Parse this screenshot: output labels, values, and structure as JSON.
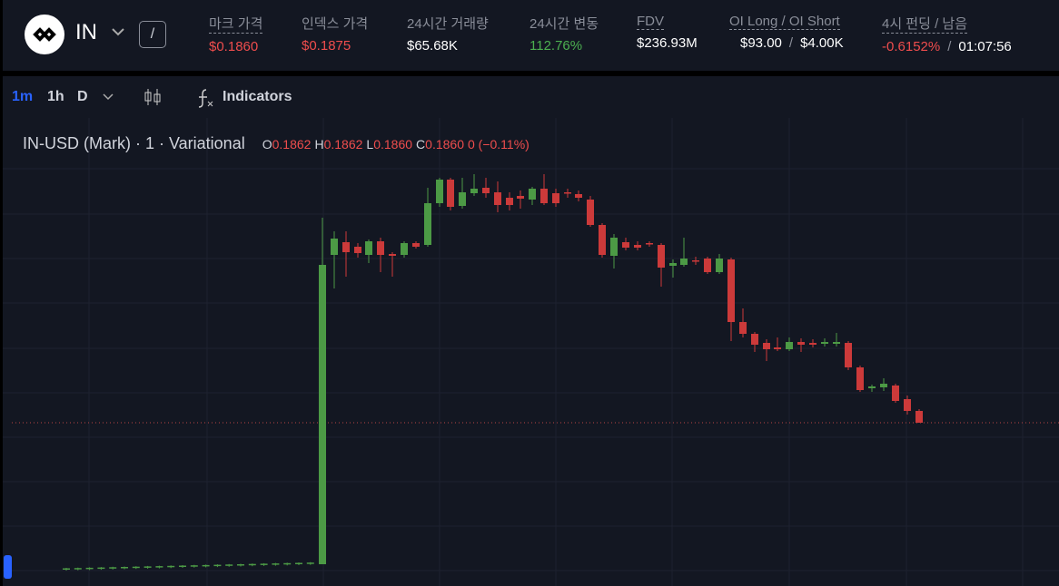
{
  "header": {
    "symbol": "IN",
    "pair_separator": "/",
    "stats": [
      {
        "label": "마크 가격",
        "values": [
          "$0.1860"
        ]
      },
      {
        "label": "인덱스 가격",
        "values": [
          "$0.1875"
        ]
      },
      {
        "label": "24시간 거래량",
        "values": [
          "$65.68K"
        ]
      },
      {
        "label": "24시간 변동",
        "values": [
          "112.76%"
        ]
      },
      {
        "label": "FDV",
        "values": [
          "$236.93M"
        ]
      },
      {
        "label": "OI Long / OI Short",
        "values": [
          "$93.00",
          "$4.00K"
        ]
      },
      {
        "label": "4시 펀딩 / 남음",
        "values": [
          "-0.6152%",
          "01:07:56"
        ]
      }
    ],
    "value_separator": "/"
  },
  "toolbar": {
    "intervals": [
      "1m",
      "1h",
      "D"
    ],
    "indicators": "Indicators"
  },
  "legend": {
    "title": "IN-USD (Mark) · 1 · Variational",
    "ohlc": [
      {
        "key": "O",
        "value": "0.1862"
      },
      {
        "key": "H",
        "value": "0.1862"
      },
      {
        "key": "L",
        "value": "0.1860"
      },
      {
        "key": "C",
        "value": "0.1860"
      }
    ],
    "change": "0 (−0.11%)"
  }
}
